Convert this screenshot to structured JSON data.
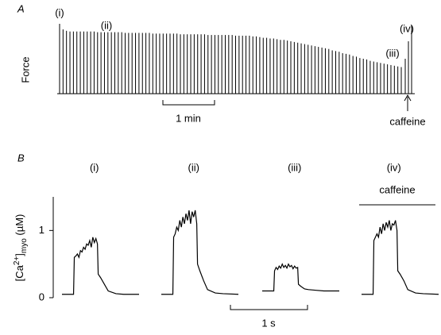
{
  "chart_data": [
    {
      "type": "bar",
      "panel_label": "A",
      "y_label": "Force",
      "annotations": [
        "(i)",
        "(ii)",
        "(iii)",
        "(iv)"
      ],
      "scale_bar_label": "1 min",
      "marker_label": "caffeine",
      "color": "#000000",
      "values": [
        1.0,
        0.92,
        0.9,
        0.89,
        0.89,
        0.89,
        0.89,
        0.89,
        0.89,
        0.89,
        0.89,
        0.88,
        0.88,
        0.88,
        0.88,
        0.88,
        0.88,
        0.88,
        0.88,
        0.87,
        0.87,
        0.87,
        0.87,
        0.87,
        0.87,
        0.87,
        0.87,
        0.86,
        0.86,
        0.86,
        0.86,
        0.86,
        0.86,
        0.86,
        0.86,
        0.85,
        0.85,
        0.85,
        0.85,
        0.85,
        0.85,
        0.85,
        0.85,
        0.84,
        0.84,
        0.84,
        0.84,
        0.84,
        0.84,
        0.84,
        0.84,
        0.83,
        0.83,
        0.83,
        0.83,
        0.83,
        0.82,
        0.82,
        0.81,
        0.8,
        0.8,
        0.79,
        0.79,
        0.78,
        0.77,
        0.77,
        0.76,
        0.75,
        0.74,
        0.73,
        0.72,
        0.71,
        0.7,
        0.69,
        0.68,
        0.67,
        0.66,
        0.65,
        0.64,
        0.62,
        0.61,
        0.6,
        0.58,
        0.57,
        0.56,
        0.54,
        0.53,
        0.51,
        0.5,
        0.49,
        0.47,
        0.46,
        0.45,
        0.44,
        0.43,
        0.42,
        0.41,
        0.4,
        0.39,
        0.38
      ],
      "caffeine_values": [
        0.5,
        0.75,
        0.98
      ]
    },
    {
      "type": "line",
      "panel_label": "B",
      "y_label": {
        "open": "[Ca",
        "sup": "2+",
        "close": "]",
        "sub": "myo",
        "unit": " (µM)"
      },
      "ylim": [
        0,
        1.5
      ],
      "yticks": [
        0,
        1
      ],
      "scale_bar_label": "1 s",
      "caffeine_label": "caffeine",
      "color": "#000000",
      "x": [
        0,
        0.15,
        0.16,
        0.18,
        0.2,
        0.22,
        0.24,
        0.26,
        0.28,
        0.3,
        0.32,
        0.34,
        0.36,
        0.38,
        0.4,
        0.42,
        0.44,
        0.46,
        0.47,
        0.5,
        0.55,
        0.6,
        0.7,
        0.8,
        1.0
      ],
      "series": [
        {
          "name": "(i)",
          "values": [
            0.05,
            0.05,
            0.6,
            0.62,
            0.65,
            0.6,
            0.7,
            0.68,
            0.75,
            0.72,
            0.8,
            0.78,
            0.85,
            0.75,
            0.9,
            0.82,
            0.88,
            0.8,
            0.35,
            0.3,
            0.2,
            0.1,
            0.06,
            0.05,
            0.05
          ]
        },
        {
          "name": "(ii)",
          "values": [
            0.05,
            0.05,
            0.9,
            0.95,
            1.05,
            1.0,
            1.15,
            1.05,
            1.2,
            1.1,
            1.25,
            1.15,
            1.3,
            1.1,
            1.28,
            1.2,
            1.3,
            1.1,
            0.5,
            0.4,
            0.25,
            0.12,
            0.07,
            0.06,
            0.05
          ]
        },
        {
          "name": "(iii)",
          "values": [
            0.1,
            0.1,
            0.4,
            0.45,
            0.42,
            0.47,
            0.44,
            0.5,
            0.45,
            0.48,
            0.44,
            0.5,
            0.46,
            0.48,
            0.43,
            0.47,
            0.44,
            0.45,
            0.2,
            0.17,
            0.13,
            0.12,
            0.11,
            0.1,
            0.1
          ]
        },
        {
          "name": "(iv)",
          "values": [
            0.05,
            0.05,
            0.85,
            0.9,
            0.95,
            0.9,
            1.05,
            0.95,
            1.1,
            1.0,
            1.12,
            1.05,
            1.15,
            1.0,
            1.1,
            1.08,
            1.15,
            1.0,
            0.4,
            0.35,
            0.25,
            0.12,
            0.07,
            0.06,
            0.05
          ]
        }
      ]
    }
  ]
}
